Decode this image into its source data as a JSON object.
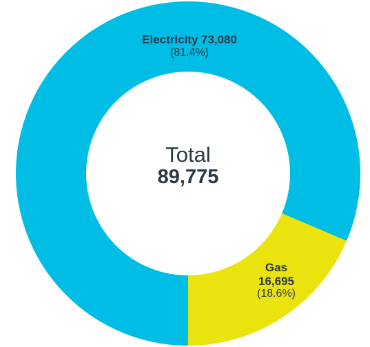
{
  "chart_data": {
    "type": "pie",
    "categories": [
      "Electricity",
      "Gas"
    ],
    "values": [
      73080,
      16695
    ],
    "value_labels": [
      "73,080",
      "16,695"
    ],
    "percent_labels": [
      "(81.4%)",
      "(18.6%)"
    ],
    "colors": [
      "#00bde6",
      "#ebe30e"
    ],
    "center": {
      "label": "Total",
      "value": "89,775"
    }
  }
}
